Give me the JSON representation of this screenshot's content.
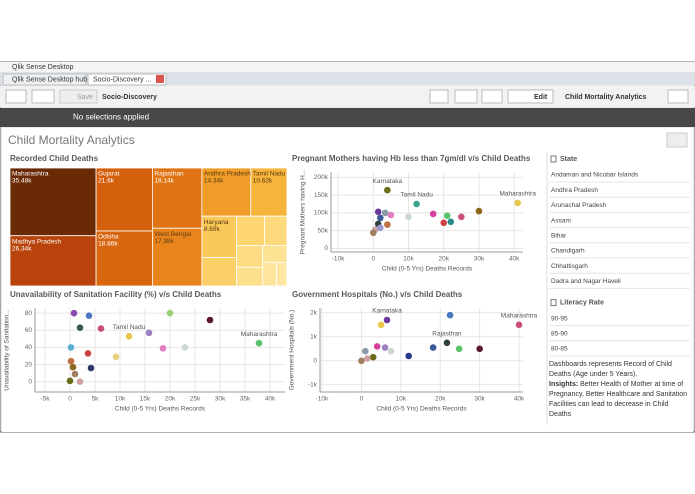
{
  "window": {
    "title": "Qlik Sense Desktop",
    "tabs": [
      "Qlik Sense Desktop hub",
      "Socio-Discovery ..."
    ]
  },
  "toolbar": {
    "save": "Save",
    "app_name": "Socio-Discovery",
    "edit": "Edit",
    "sheet_name": "Child Mortality Analytics"
  },
  "selections": "No selections applied",
  "sheet_title": "Child Mortality Analytics",
  "chart_data": [
    {
      "type": "treemap",
      "title": "Recorded Child Deaths",
      "categories": [
        "Maharashtra",
        "Madhya Pradesh",
        "Gujarat",
        "Odisha",
        "Rajasthan",
        "West Bengal",
        "Andhra Pradesh",
        "Tamil Nadu",
        "Haryana",
        null,
        null,
        null,
        null,
        null,
        null,
        null,
        null
      ],
      "values": [
        35480,
        26340,
        21600,
        18860,
        18140,
        17380,
        14340,
        10620,
        8690,
        6000,
        5000,
        4000,
        3500,
        3000,
        2500,
        2000,
        1500
      ],
      "value_labels": [
        "35.48k",
        "26.34k",
        "21.6k",
        "18.86k",
        "18.14k",
        "17.38k",
        "14.34k",
        "10.62k",
        "8.69k",
        null,
        null,
        null,
        null,
        null,
        null,
        null,
        null
      ],
      "colors": [
        "#6b2a06",
        "#b8440b",
        "#d4600e",
        "#d8660f",
        "#e07414",
        "#e8841b",
        "#f09c28",
        "#f6b43c",
        "#fbc85a",
        "#fcd068",
        "#fdd672",
        "#fdd97c",
        "#fedc84",
        "#fedf8c",
        "#fee294",
        "#fee59c",
        "#fee8a4"
      ]
    },
    {
      "type": "scatter",
      "title": "Pregnant Mothers having Hb less than 7gm/dl v/s Child Deaths",
      "x_label": "Child (0-5 Yrs) Deaths Records",
      "y_label": "Pregnant Mothers having H...",
      "x": [
        4000,
        12300,
        41000,
        10000,
        17000,
        21000,
        25000,
        30000,
        20000,
        22000,
        1400,
        3400,
        5000,
        2000,
        4000,
        1400,
        600,
        0,
        2000
      ],
      "values": [
        164000,
        125000,
        128000,
        89000,
        97000,
        92000,
        89000,
        105000,
        72000,
        75000,
        103000,
        100000,
        94000,
        86000,
        67000,
        69000,
        53000,
        44000,
        58000
      ],
      "point_labels": [
        "Karnataka",
        "Tamil Nadu",
        "Maharashtra",
        null,
        null,
        null,
        null,
        null,
        null,
        null,
        null,
        null,
        null,
        null,
        null,
        null,
        null,
        null,
        null
      ],
      "colors": [
        "#6b6b1a",
        "#3aa58c",
        "#e8c84a",
        "#c9d9cf",
        "#d63f9e",
        "#59c26a",
        "#c8507a",
        "#8a6a1a",
        "#d04040",
        "#2a8a8a",
        "#6a3a9a",
        "#8a9aa8",
        "#e27bc0",
        "#3a5a9a",
        "#c07040",
        "#2f3f3f",
        "#d0a0a0",
        "#a08060",
        "#9a9ad0"
      ],
      "xlim": [
        -12000,
        42500
      ],
      "ylim": [
        -10000,
        215000
      ],
      "xticks": [
        {
          "value": -10000,
          "label": "-10k"
        },
        0,
        {
          "value": 10000,
          "label": "10k"
        },
        {
          "value": 20000,
          "label": "20k"
        },
        {
          "value": 30000,
          "label": "30k"
        },
        {
          "value": 40000,
          "label": "40k"
        }
      ],
      "yticks": [
        0,
        {
          "value": 50000,
          "label": "50k"
        },
        {
          "value": 100000,
          "label": "100k"
        },
        {
          "value": 150000,
          "label": "150k"
        },
        {
          "value": 200000,
          "label": "200k"
        }
      ],
      "grid": true
    },
    {
      "type": "scatter",
      "title": "Unavailability of Sanitation Facility (%) v/s Child Deaths",
      "x_label": "Child (0-5 Yrs) Deaths Records",
      "y_label": "Unavailability of Sanitation...",
      "x": [
        37800,
        11800,
        20000,
        28000,
        15800,
        18600,
        23000,
        3800,
        6200,
        9200,
        4200,
        800,
        2000,
        3600,
        200,
        200,
        1000,
        0,
        2000,
        600
      ],
      "values": [
        45,
        53,
        80,
        72,
        57,
        39,
        40,
        77,
        62,
        29,
        16,
        80,
        63,
        33,
        40,
        24,
        9,
        1,
        0,
        17
      ],
      "point_labels": [
        "Maharashtra",
        "Tamil Nadu",
        null,
        null,
        null,
        null,
        null,
        null,
        null,
        null,
        null,
        null,
        null,
        null,
        null,
        null,
        null,
        null,
        null,
        null
      ],
      "colors": [
        "#59c26a",
        "#e8c84a",
        "#9ad070",
        "#5a1a2a",
        "#9a80c0",
        "#e27bc0",
        "#c9d9cf",
        "#4a78c0",
        "#c8507a",
        "#e8d080",
        "#2a3a6a",
        "#8a4ab0",
        "#3a5a4a",
        "#d04040",
        "#5ab0d0",
        "#c07040",
        "#a08060",
        "#6b6b1a",
        "#d0a0a0",
        "#8a6a1a"
      ],
      "xlim": [
        -7000,
        43000
      ],
      "ylim": [
        -12,
        86
      ],
      "xticks": [
        {
          "value": -5000,
          "label": "-5k"
        },
        0,
        {
          "value": 5000,
          "label": "5k"
        },
        {
          "value": 10000,
          "label": "10k"
        },
        {
          "value": 15000,
          "label": "15k"
        },
        {
          "value": 20000,
          "label": "20k"
        },
        {
          "value": 25000,
          "label": "25k"
        },
        {
          "value": 30000,
          "label": "30k"
        },
        {
          "value": 35000,
          "label": "35k"
        },
        {
          "value": 40000,
          "label": "40k"
        }
      ],
      "yticks": [
        0,
        20,
        40,
        60,
        80
      ],
      "grid": true
    },
    {
      "type": "scatter",
      "title": "Government Hospitals (No.) v/s Child Deaths",
      "x_label": "Child (0-5 Yrs) Deaths Records",
      "y_label": "Government Hospitals (No.)",
      "x": [
        40000,
        22500,
        6500,
        5000,
        21700,
        18200,
        24800,
        30000,
        12000,
        6000,
        7500,
        4000,
        1000,
        3000,
        1500,
        0
      ],
      "values": [
        1500,
        1900,
        1700,
        1500,
        750,
        550,
        500,
        500,
        200,
        550,
        400,
        600,
        400,
        150,
        100,
        0
      ],
      "point_labels": [
        "Maharashtra",
        null,
        "Karnataka",
        null,
        "Rajasthan",
        null,
        null,
        null,
        null,
        null,
        null,
        null,
        null,
        null,
        null,
        null
      ],
      "colors": [
        "#c8507a",
        "#4a78c0",
        "#6a3a9a",
        "#e8c84a",
        "#2f3f3f",
        "#3a5a9a",
        "#59c26a",
        "#5a1a2a",
        "#2a3a8a",
        "#9a80c0",
        "#c9d9cf",
        "#d63f9e",
        "#8a9aa8",
        "#6b6b1a",
        "#d0a0a0",
        "#a08060"
      ],
      "xlim": [
        -10500,
        41000
      ],
      "ylim": [
        -1300,
        2200
      ],
      "xticks": [
        {
          "value": -10000,
          "label": "-10k"
        },
        0,
        {
          "value": 10000,
          "label": "10k"
        },
        {
          "value": 20000,
          "label": "20k"
        },
        {
          "value": 30000,
          "label": "30k"
        },
        {
          "value": 40000,
          "label": "40k"
        }
      ],
      "yticks": [
        {
          "value": -1000,
          "label": "-1k"
        },
        0,
        {
          "value": 1000,
          "label": "1k"
        },
        {
          "value": 2000,
          "label": "2k"
        }
      ],
      "grid": true
    }
  ],
  "filters": [
    {
      "title": "State",
      "items": [
        "Andaman and Nicobar Islands",
        "Andhra Pradesh",
        "Arunachal Pradesh",
        "Assam",
        "Bihar",
        "Chandigarh",
        "Chhattisgarh",
        "Dadra and Nagar Haveli"
      ]
    },
    {
      "title": "Literacy Rate",
      "items": [
        "90-95",
        "85-90",
        "80-85"
      ]
    }
  ],
  "notes": {
    "text": "Dashboards represents Record of Child Deaths (Age under 5 Years).",
    "insights_label": "Insights:",
    "insights": "Better Health of Mother at time of Pregnancy, Better Healthcare and Sanitation Facilities can lead to decrease in Child Deaths"
  }
}
